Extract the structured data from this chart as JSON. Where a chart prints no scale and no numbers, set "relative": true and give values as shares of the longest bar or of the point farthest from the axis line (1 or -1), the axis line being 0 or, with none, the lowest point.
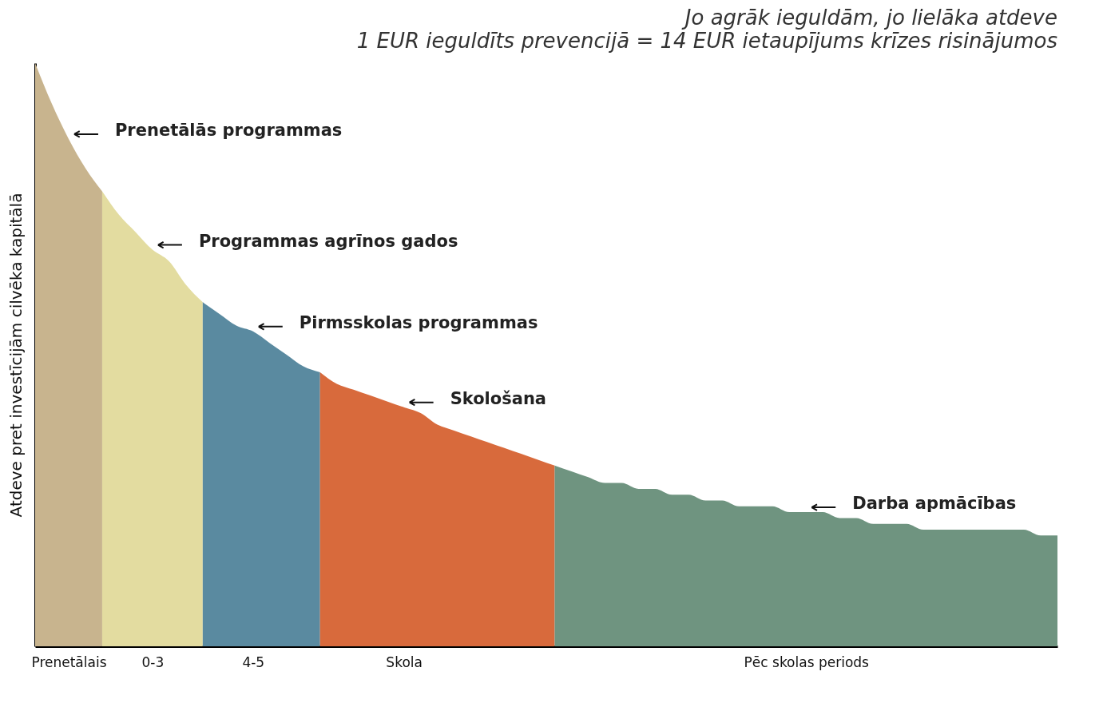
{
  "chart_data": {
    "type": "area",
    "relative": true,
    "title": "Jo agrāk ieguldām, jo lielāka atdeve",
    "subtitle": "1 EUR ieguldīts  prevencijā = 14 EUR ietaupījums krīzes risinājumos",
    "ylabel": "Atdeve pret investīcijām cilvēka kapitālā",
    "categories": [
      null,
      null,
      "Prenetālais",
      null,
      null,
      null,
      null,
      "0-3",
      null,
      null,
      null,
      null,
      null,
      "4-5",
      null,
      null,
      null,
      null,
      null,
      null,
      null,
      null,
      "Skola",
      null,
      null,
      null,
      null,
      null,
      null,
      null,
      null,
      null,
      null,
      null,
      null,
      null,
      null,
      null,
      null,
      null,
      null,
      null,
      null,
      null,
      null,
      null,
      "Pēc skolas periods",
      null,
      null,
      null,
      null,
      null,
      null,
      null,
      null,
      null,
      null,
      null,
      null,
      null,
      null,
      null
    ],
    "series": [
      {
        "color": "#c8b48e",
        "values": [
          1.0,
          0.93,
          0.87,
          0.82,
          0.78,
          null,
          null,
          null,
          null,
          null,
          null,
          null,
          null,
          null,
          null,
          null,
          null,
          null,
          null,
          null,
          null,
          null,
          null,
          null,
          null,
          null,
          null,
          null,
          null,
          null,
          null,
          null,
          null,
          null,
          null,
          null,
          null,
          null,
          null,
          null,
          null,
          null,
          null,
          null,
          null,
          null,
          null,
          null,
          null,
          null,
          null,
          null,
          null,
          null,
          null,
          null,
          null,
          null,
          null,
          null,
          null,
          null
        ]
      },
      {
        "color": "#e3dca0",
        "values": [
          null,
          null,
          null,
          null,
          0.78,
          0.74,
          0.71,
          0.68,
          0.66,
          0.62,
          0.59,
          null,
          null,
          null,
          null,
          null,
          null,
          null,
          null,
          null,
          null,
          null,
          null,
          null,
          null,
          null,
          null,
          null,
          null,
          null,
          null,
          null,
          null,
          null,
          null,
          null,
          null,
          null,
          null,
          null,
          null,
          null,
          null,
          null,
          null,
          null,
          null,
          null,
          null,
          null,
          null,
          null,
          null,
          null,
          null,
          null,
          null,
          null,
          null,
          null,
          null,
          null
        ]
      },
      {
        "color": "#5a8aa0",
        "values": [
          null,
          null,
          null,
          null,
          null,
          null,
          null,
          null,
          null,
          null,
          0.59,
          0.57,
          0.55,
          0.54,
          0.52,
          0.5,
          0.48,
          0.47,
          null,
          null,
          null,
          null,
          null,
          null,
          null,
          null,
          null,
          null,
          null,
          null,
          null,
          null,
          null,
          null,
          null,
          null,
          null,
          null,
          null,
          null,
          null,
          null,
          null,
          null,
          null,
          null,
          null,
          null,
          null,
          null,
          null,
          null,
          null,
          null,
          null,
          null,
          null,
          null,
          null,
          null,
          null,
          null
        ]
      },
      {
        "color": "#d86a3c",
        "values": [
          null,
          null,
          null,
          null,
          null,
          null,
          null,
          null,
          null,
          null,
          null,
          null,
          null,
          null,
          null,
          null,
          null,
          0.47,
          0.45,
          0.44,
          0.43,
          0.42,
          0.41,
          0.4,
          0.38,
          0.37,
          0.36,
          0.35,
          0.34,
          0.33,
          0.32,
          0.31,
          null,
          null,
          null,
          null,
          null,
          null,
          null,
          null,
          null,
          null,
          null,
          null,
          null,
          null,
          null,
          null,
          null,
          null,
          null,
          null,
          null,
          null,
          null,
          null,
          null,
          null,
          null,
          null,
          null,
          null
        ]
      },
      {
        "color": "#6f9480",
        "values": [
          null,
          null,
          null,
          null,
          null,
          null,
          null,
          null,
          null,
          null,
          null,
          null,
          null,
          null,
          null,
          null,
          null,
          null,
          null,
          null,
          null,
          null,
          null,
          null,
          null,
          null,
          null,
          null,
          null,
          null,
          null,
          0.31,
          0.3,
          0.29,
          0.28,
          0.28,
          0.27,
          0.27,
          0.26,
          0.26,
          0.25,
          0.25,
          0.24,
          0.24,
          0.24,
          0.23,
          0.23,
          0.23,
          0.22,
          0.22,
          0.21,
          0.21,
          0.21,
          0.2,
          0.2,
          0.2,
          0.2,
          0.2,
          0.2,
          0.2,
          0.19,
          0.19
        ]
      }
    ],
    "annotations": [
      {
        "text": "Prenetālās programmas",
        "x": "Prenetālais",
        "y": 0.87
      },
      {
        "text": "Programmas agrīnos gados",
        "x": "0-3",
        "y": 0.68
      },
      {
        "text": "Pirmsskolas  programmas",
        "x": "4-5",
        "y": 0.54
      },
      {
        "text": "Skološana",
        "x": "Skola",
        "y": 0.41
      },
      {
        "text": "Darba apmācības",
        "x": "Pēc skolas periods",
        "y": 0.23
      }
    ]
  }
}
